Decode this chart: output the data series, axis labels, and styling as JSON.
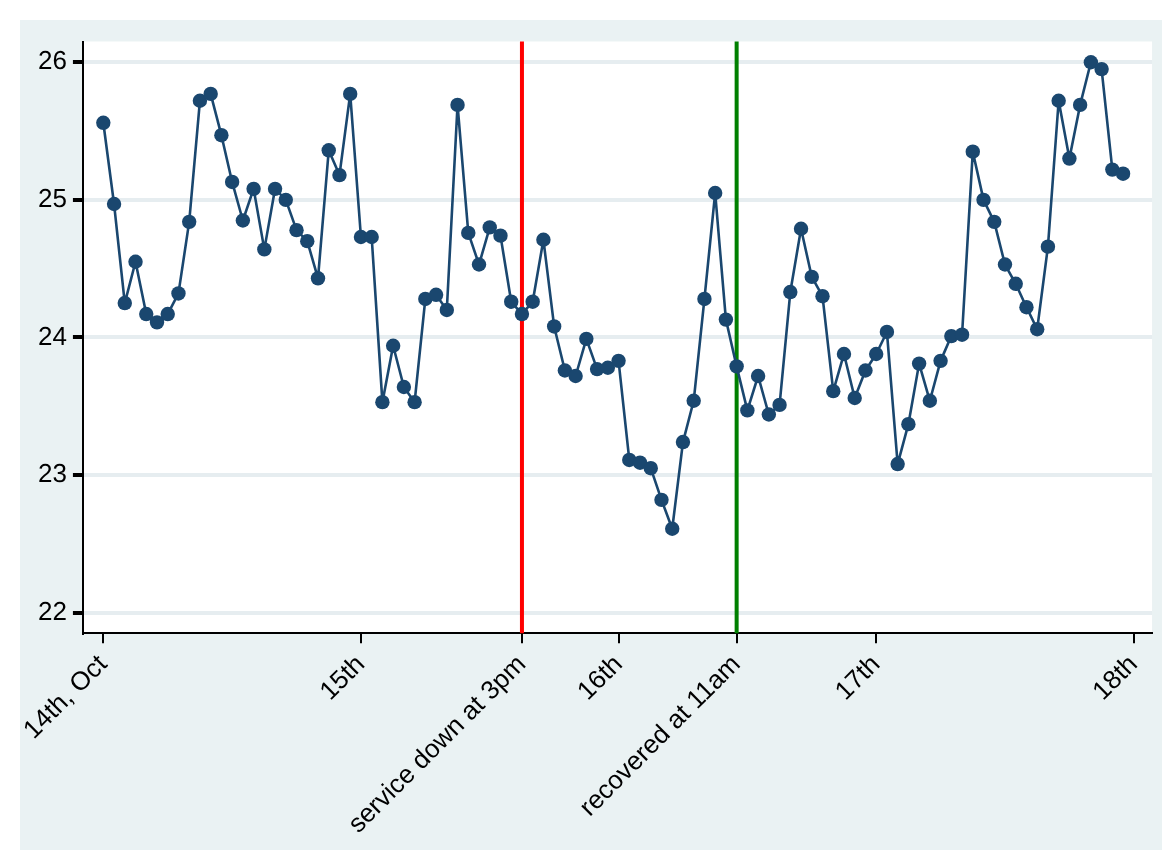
{
  "chart_data": {
    "type": "line",
    "marker": "circle",
    "line_style": "solid",
    "grid": "y",
    "legend": false,
    "x": [
      "--10-14T00:00",
      "--10-14T01:00",
      "--10-14T02:00",
      "--10-14T03:00",
      "--10-14T04:00",
      "--10-14T05:00",
      "--10-14T06:00",
      "--10-14T07:00",
      "--10-14T08:00",
      "--10-14T09:00",
      "--10-14T10:00",
      "--10-14T11:00",
      "--10-14T12:00",
      "--10-14T13:00",
      "--10-14T14:00",
      "--10-14T15:00",
      "--10-14T16:00",
      "--10-14T17:00",
      "--10-14T18:00",
      "--10-14T19:00",
      "--10-14T20:00",
      "--10-14T21:00",
      "--10-14T22:00",
      "--10-14T23:00",
      "--10-15T00:00",
      "--10-15T01:00",
      "--10-15T02:00",
      "--10-15T03:00",
      "--10-15T04:00",
      "--10-15T05:00",
      "--10-15T06:00",
      "--10-15T07:00",
      "--10-15T08:00",
      "--10-15T09:00",
      "--10-15T10:00",
      "--10-15T11:00",
      "--10-15T12:00",
      "--10-15T13:00",
      "--10-15T14:00",
      "--10-15T15:00",
      "--10-15T16:00",
      "--10-15T17:00",
      "--10-15T18:00",
      "--10-15T19:00",
      "--10-15T20:00",
      "--10-15T21:00",
      "--10-15T22:00",
      "--10-15T23:00",
      "--10-16T00:00",
      "--10-16T01:00",
      "--10-16T02:00",
      "--10-16T03:00",
      "--10-16T04:00",
      "--10-16T05:00",
      "--10-16T06:00",
      "--10-16T07:00",
      "--10-16T08:00",
      "--10-16T09:00",
      "--10-16T10:00",
      "--10-16T11:00",
      "--10-16T12:00",
      "--10-16T13:00",
      "--10-16T14:00",
      "--10-16T15:00",
      "--10-16T16:00",
      "--10-16T17:00",
      "--10-16T18:00",
      "--10-16T19:00",
      "--10-16T20:00",
      "--10-16T21:00",
      "--10-16T22:00",
      "--10-16T23:00",
      "--10-17T00:00",
      "--10-17T01:00",
      "--10-17T02:00",
      "--10-17T03:00",
      "--10-17T04:00",
      "--10-17T05:00",
      "--10-17T06:00",
      "--10-17T07:00",
      "--10-17T08:00",
      "--10-17T09:00",
      "--10-17T10:00",
      "--10-17T11:00",
      "--10-17T12:00",
      "--10-17T13:00",
      "--10-17T14:00",
      "--10-17T15:00",
      "--10-17T16:00",
      "--10-17T17:00",
      "--10-17T18:00",
      "--10-17T19:00",
      "--10-17T20:00",
      "--10-17T21:00",
      "--10-17T22:00",
      "--10-17T23:00"
    ],
    "series": [
      {
        "color": "#1a476f",
        "values": [
          25.56,
          24.97,
          24.25,
          24.55,
          24.17,
          24.11,
          24.17,
          24.32,
          24.84,
          25.72,
          25.77,
          25.47,
          25.13,
          24.85,
          25.08,
          24.64,
          25.08,
          25.0,
          24.78,
          24.7,
          24.43,
          25.36,
          25.18,
          25.77,
          24.73,
          24.73,
          23.53,
          23.94,
          23.64,
          23.53,
          24.28,
          24.31,
          24.2,
          25.69,
          24.76,
          24.53,
          24.8,
          24.74,
          24.26,
          24.17,
          24.26,
          24.71,
          24.08,
          23.76,
          23.72,
          23.99,
          23.77,
          23.78,
          23.83,
          23.11,
          23.09,
          23.05,
          22.82,
          22.61,
          23.24,
          23.54,
          24.28,
          25.05,
          24.13,
          23.79,
          23.47,
          23.72,
          23.44,
          23.51,
          24.33,
          24.79,
          24.44,
          24.3,
          23.61,
          23.88,
          23.56,
          23.76,
          23.88,
          24.04,
          23.08,
          23.37,
          23.81,
          23.54,
          23.83,
          24.01,
          24.02,
          25.35,
          25.0,
          24.84,
          24.53,
          24.39,
          24.22,
          24.06,
          24.66,
          25.72,
          25.3,
          25.69,
          26.0,
          25.95,
          25.22,
          25.19
        ]
      }
    ],
    "xlim": [
      "--10-13T22:06",
      "--10-18T01:42"
    ],
    "xticks": [
      {
        "value": "--10-14",
        "label": "14th, Oct"
      },
      {
        "value": "--10-15",
        "label": "15th"
      },
      {
        "value": "--10-16",
        "label": "16th"
      },
      {
        "value": "--10-17",
        "label": "17th"
      },
      {
        "value": "--10-18",
        "label": "18th"
      }
    ],
    "ylim": [
      21.85,
      26.15
    ],
    "yticks": [
      22,
      23,
      24,
      25,
      26
    ],
    "ref_lines": [
      {
        "axis": "x",
        "value": "--10-15T15:00",
        "label": "service down at 3pm",
        "color": "#ff0000"
      },
      {
        "axis": "x",
        "value": "--10-16T11:00",
        "label": "recovered at 11am",
        "color": "#008000"
      }
    ]
  }
}
